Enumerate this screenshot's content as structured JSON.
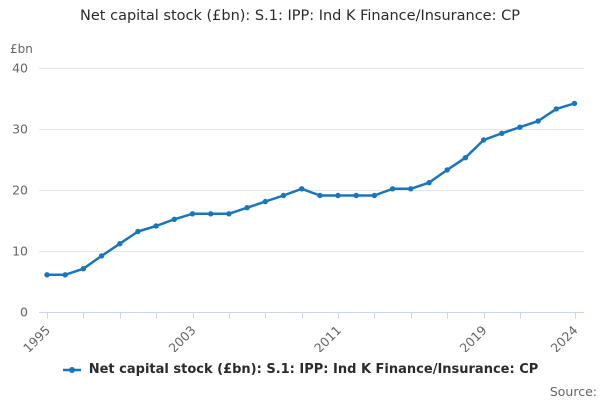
{
  "header": {
    "title": "Net capital stock (£bn): S.1: IPP: Ind K Finance/Insurance: CP"
  },
  "y_axis_unit": "£bn",
  "legend": {
    "label": "Net capital stock (£bn): S.1: IPP: Ind K Finance/Insurance: CP",
    "marker": "line-with-dot"
  },
  "source_label": "Source:",
  "colors": {
    "line": "#1a76bc",
    "grid": "#e6e6e6",
    "axis": "#ccd6eb",
    "text_muted": "#666666",
    "text_dark": "#2b2b2b"
  },
  "chart_data": {
    "type": "line",
    "title": "Net capital stock (£bn): S.1: IPP: Ind K Finance/Insurance: CP",
    "ylabel": "£bn",
    "xlabel": "",
    "x": [
      1995,
      1996,
      1997,
      1998,
      1999,
      2000,
      2001,
      2002,
      2003,
      2004,
      2005,
      2006,
      2007,
      2008,
      2009,
      2010,
      2011,
      2012,
      2013,
      2014,
      2015,
      2016,
      2017,
      2018,
      2019,
      2020,
      2021,
      2022,
      2023,
      2024
    ],
    "series": [
      {
        "name": "Net capital stock (£bn): S.1: IPP: Ind K Finance/Insurance: CP",
        "values": [
          6.1,
          6.1,
          7.1,
          9.2,
          11.2,
          13.2,
          14.1,
          15.2,
          16.1,
          16.1,
          16.1,
          17.1,
          18.1,
          19.1,
          20.2,
          19.1,
          19.1,
          19.1,
          19.1,
          20.2,
          20.2,
          21.2,
          23.3,
          25.3,
          28.2,
          29.3,
          30.3,
          31.3,
          33.3,
          34.2
        ]
      }
    ],
    "ylim": [
      0,
      40
    ],
    "yticks": [
      0,
      10,
      20,
      30,
      40
    ],
    "xticks": [
      1995,
      1997,
      1999,
      2001,
      2003,
      2005,
      2007,
      2009,
      2011,
      2013,
      2015,
      2017,
      2019,
      2021,
      2024
    ],
    "xticks_labeled": [
      1995,
      2003,
      2011,
      2019,
      2024
    ],
    "grid": "horizontal-only",
    "legend_position": "bottom",
    "markers": "circle"
  }
}
